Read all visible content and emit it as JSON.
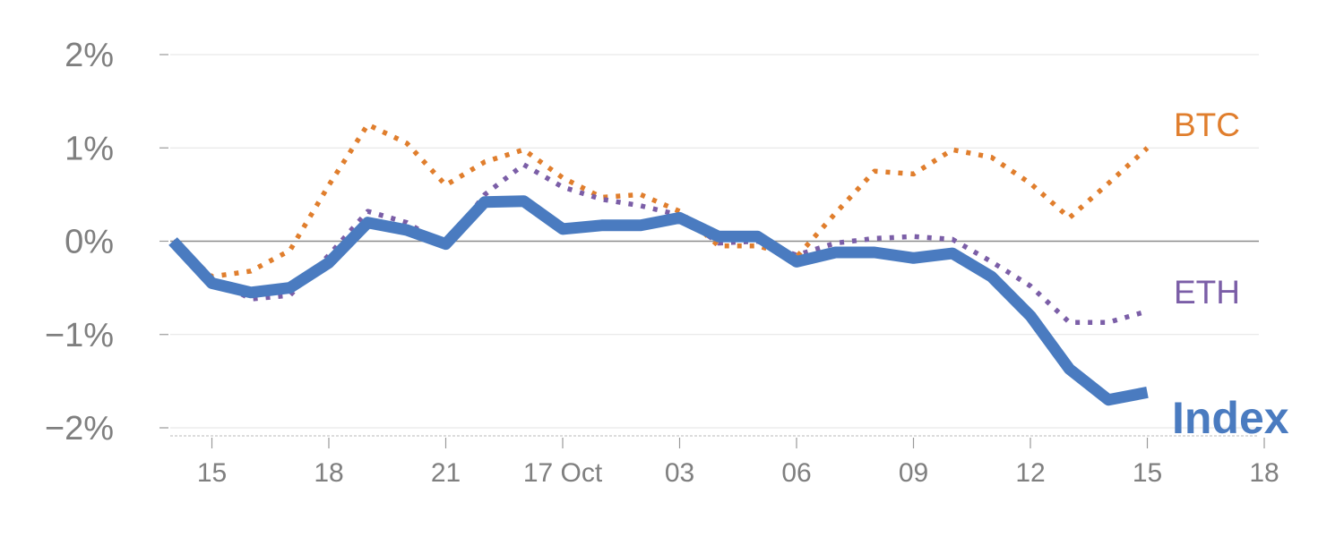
{
  "chart_data": {
    "type": "line",
    "title": "",
    "xlabel": "",
    "ylabel": "",
    "ylim": [
      -2,
      2
    ],
    "y_ticks": [
      {
        "value": 2,
        "label": "2%"
      },
      {
        "value": 1,
        "label": "1%"
      },
      {
        "value": 0,
        "label": "0%"
      },
      {
        "value": -1,
        "label": "−1%"
      },
      {
        "value": -2,
        "label": "−2%"
      }
    ],
    "x_ticks": [
      {
        "index": 1,
        "label": "15"
      },
      {
        "index": 4,
        "label": "18"
      },
      {
        "index": 7,
        "label": "21"
      },
      {
        "index": 10,
        "label": "17 Oct"
      },
      {
        "index": 13,
        "label": "03"
      },
      {
        "index": 16,
        "label": "06"
      },
      {
        "index": 19,
        "label": "09"
      },
      {
        "index": 22,
        "label": "12"
      },
      {
        "index": 25,
        "label": "15"
      },
      {
        "index": 28,
        "label": "18"
      }
    ],
    "x": [
      0,
      1,
      2,
      3,
      4,
      5,
      6,
      7,
      8,
      9,
      10,
      11,
      12,
      13,
      14,
      15,
      16,
      17,
      18,
      19,
      20,
      21,
      22,
      23,
      24,
      25
    ],
    "series": [
      {
        "name": "BTC",
        "label": "BTC",
        "color": "#e07e2d",
        "style": "dotted",
        "values": [
          0,
          -0.38,
          -0.32,
          -0.1,
          0.6,
          1.25,
          1.05,
          0.6,
          0.85,
          0.98,
          0.68,
          0.47,
          0.5,
          0.32,
          -0.05,
          -0.05,
          -0.17,
          0.3,
          0.75,
          0.72,
          0.98,
          0.9,
          0.62,
          0.25,
          0.62,
          1.0
        ]
      },
      {
        "name": "ETH",
        "label": "ETH",
        "color": "#7b5ea7",
        "style": "dotted",
        "values": [
          0,
          -0.4,
          -0.62,
          -0.58,
          -0.15,
          0.32,
          0.2,
          -0.05,
          0.5,
          0.82,
          0.58,
          0.45,
          0.38,
          0.28,
          -0.02,
          0,
          -0.15,
          -0.02,
          0.03,
          0.05,
          0.02,
          -0.22,
          -0.48,
          -0.87,
          -0.87,
          -0.75
        ]
      },
      {
        "name": "Index",
        "label": "Index",
        "color": "#4a7bc0",
        "style": "solid",
        "values": [
          0,
          -0.45,
          -0.55,
          -0.5,
          -0.23,
          0.2,
          0.12,
          -0.03,
          0.42,
          0.43,
          0.13,
          0.17,
          0.17,
          0.25,
          0.05,
          0.05,
          -0.22,
          -0.12,
          -0.12,
          -0.18,
          -0.13,
          -0.38,
          -0.8,
          -1.37,
          -1.7,
          -1.62
        ]
      }
    ]
  }
}
